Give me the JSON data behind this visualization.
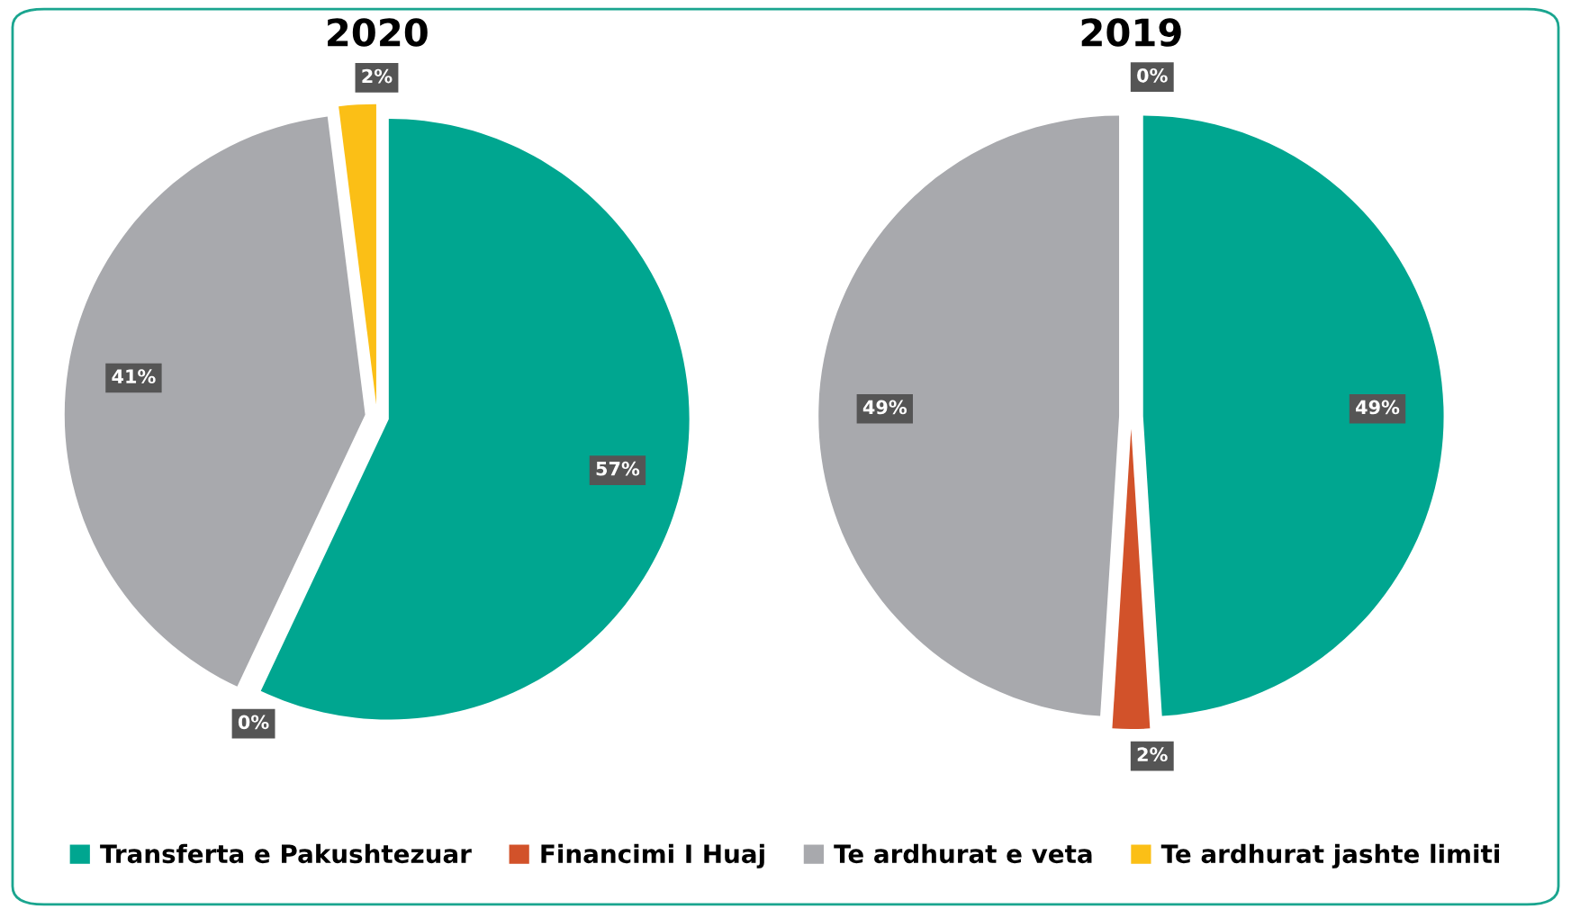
{
  "chart_data": [
    {
      "type": "pie",
      "title": "2020",
      "categories": [
        "Transferta e Pakushtezuar",
        "Financimi I Huaj",
        "Te ardhurat e veta",
        "Te ardhurat jashte limiti"
      ],
      "values": [
        57,
        0,
        41,
        2
      ],
      "value_labels": [
        "57%",
        "0%",
        "41%",
        "2%"
      ],
      "colors": [
        "#00a690",
        "#d2522a",
        "#a8a9ad",
        "#fbbf16"
      ],
      "legend": "bottom"
    },
    {
      "type": "pie",
      "title": "2019",
      "categories": [
        null,
        null,
        null,
        null
      ],
      "values": [
        49,
        2,
        49,
        0
      ],
      "value_labels": [
        "49%",
        "2%",
        "49%",
        "0%"
      ],
      "colors": [
        "#00a690",
        "#d2522a",
        "#a8a9ad",
        "#fbbf16"
      ]
    }
  ]
}
